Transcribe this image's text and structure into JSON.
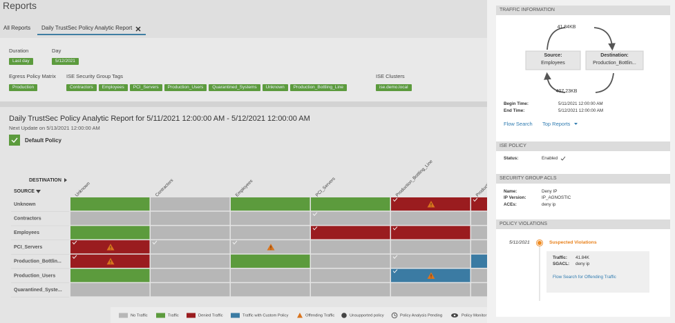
{
  "header": {
    "title": "Reports"
  },
  "tabs": [
    {
      "label": "All Reports"
    },
    {
      "label": "Daily TrustSec Policy Analytic Report"
    }
  ],
  "filters": {
    "duration": {
      "label": "Duration",
      "value": "Last day"
    },
    "day": {
      "label": "Day",
      "value": "5/12/2021"
    },
    "egress_policy_matrix": {
      "label": "Egress Policy Matrix",
      "value": "Production"
    },
    "security_group_tags": {
      "label": "ISE Security Group Tags",
      "values": [
        "Contractors",
        "Employees",
        "PCI_Servers",
        "Production_Users",
        "Quarantined_Systems",
        "Unknown",
        "Production_Bottling_Line"
      ]
    },
    "ise_clusters": {
      "label": "ISE Clusters",
      "value": "ise.demo.local"
    }
  },
  "report": {
    "title": "Daily TrustSec Policy Analytic Report for 5/11/2021 12:00:00 AM - 5/12/2021 12:00:00 AM",
    "next_update": "Next Update on 5/13/2021 12:00:00 AM",
    "policy": "Default Policy"
  },
  "matrix": {
    "destination_label": "DESTINATION",
    "source_label": "SOURCE",
    "columns": [
      "Unknown",
      "Contractors",
      "Employees",
      "PCI_Servers",
      "Production_Bottling_Line",
      "Production_Users"
    ],
    "rows": [
      "Unknown",
      "Contractors",
      "Employees",
      "PCI_Servers",
      "Production_Bottlin...",
      "Production_Users",
      "Quarantined_Syste..."
    ]
  },
  "legend": [
    "No Traffic",
    "Traffic",
    "Denied Traffic",
    "Traffic with Custom Policy",
    "Offending Traffic",
    "Unsupported policy",
    "Policy Analysis Pending",
    "Policy Monitor Mode"
  ],
  "traffic_information": {
    "title": "TRAFFIC INFORMATION",
    "outbound": "41.84KB",
    "inbound": "407.23KB",
    "source": {
      "label": "Source:",
      "value": "Employees"
    },
    "destination": {
      "label": "Destination:",
      "value": "Production_Bottlin..."
    },
    "begin_time": {
      "label": "Begin Time:",
      "value": "5/11/2021 12:00:00 AM"
    },
    "end_time": {
      "label": "End Time:",
      "value": "5/12/2021 12:00:00 AM"
    },
    "links": [
      "Flow Search",
      "Top Reports"
    ]
  },
  "ise_policy": {
    "title": "ISE POLICY",
    "status": {
      "label": "Status:",
      "value": "Enabled"
    }
  },
  "security_group_acls": {
    "title": "SECURITY GROUP ACLS",
    "name": {
      "label": "Name:",
      "value": "Deny IP"
    },
    "ip_version": {
      "label": "IP Version:",
      "value": "IP_AGNOSTIC"
    },
    "aces": {
      "label": "ACEs:",
      "value": "deny ip"
    }
  },
  "policy_violations": {
    "title": "POLICY VIOLATIONS",
    "date": "5/11/2021",
    "event": "Suspected Violations",
    "traffic": {
      "label": "Traffic:",
      "value": "41.84K"
    },
    "sgacl": {
      "label": "SGACL:",
      "value": "deny ip"
    },
    "link": "Flow Search for Offending Traffic"
  }
}
